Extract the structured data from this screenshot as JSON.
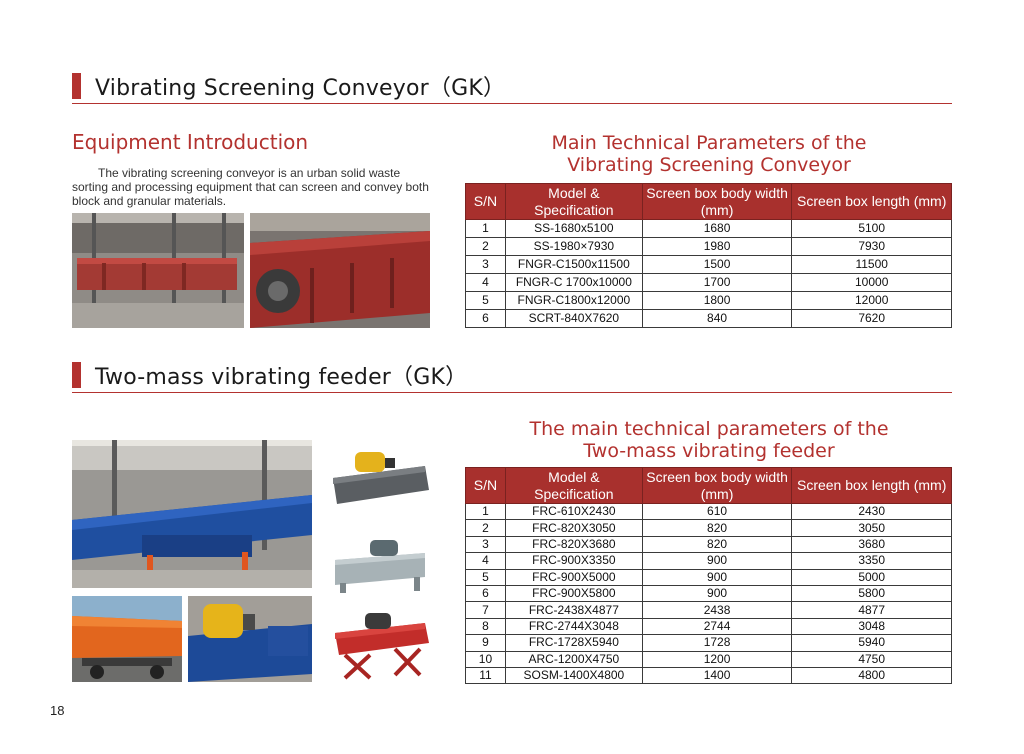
{
  "section1": {
    "title": "Vibrating Screening Conveyor（GK）"
  },
  "intro": {
    "title": "Equipment Introduction",
    "text": "The vibrating screening conveyor is an urban solid waste sorting and processing equipment that can screen and convey both block and granular materials."
  },
  "table1": {
    "title_line1": "Main Technical Parameters of the",
    "title_line2": "Vibrating Screening Conveyor",
    "headers": [
      "S/N",
      "Model & Specification",
      "Screen box body width (mm)",
      "Screen box length (mm)"
    ],
    "rows": [
      [
        "1",
        "SS-1680x5100",
        "1680",
        "5100"
      ],
      [
        "2",
        "SS-1980×7930",
        "1980",
        "7930"
      ],
      [
        "3",
        "FNGR-C1500x11500",
        "1500",
        "11500"
      ],
      [
        "4",
        "FNGR-C 1700x10000",
        "1700",
        "10000"
      ],
      [
        "5",
        "FNGR-C1800x12000",
        "1800",
        "12000"
      ],
      [
        "6",
        "SCRT-840X7620",
        "840",
        "7620"
      ]
    ]
  },
  "section2": {
    "title": "Two-mass vibrating feeder（GK）"
  },
  "table2": {
    "title_line1": "The main technical parameters of the",
    "title_line2": "Two-mass vibrating feeder",
    "headers": [
      "S/N",
      "Model & Specification",
      "Screen box body width (mm)",
      "Screen box length (mm)"
    ],
    "rows": [
      [
        "1",
        "FRC-610X2430",
        "610",
        "2430"
      ],
      [
        "2",
        "FRC-820X3050",
        "820",
        "3050"
      ],
      [
        "3",
        "FRC-820X3680",
        "820",
        "3680"
      ],
      [
        "4",
        "FRC-900X3350",
        "900",
        "3350"
      ],
      [
        "5",
        "FRC-900X5000",
        "900",
        "5000"
      ],
      [
        "6",
        "FRC-900X5800",
        "900",
        "5800"
      ],
      [
        "7",
        "FRC-2438X4877",
        "2438",
        "4877"
      ],
      [
        "8",
        "FRC-2744X3048",
        "2744",
        "3048"
      ],
      [
        "9",
        "FRC-1728X5940",
        "1728",
        "5940"
      ],
      [
        "10",
        "ARC-1200X4750",
        "1200",
        "4750"
      ],
      [
        "11",
        "SOSM-1400X4800",
        "1400",
        "4800"
      ]
    ]
  },
  "page_number": "18",
  "colors": {
    "accent": "#b3322f",
    "header_fill": "#a8302d"
  }
}
